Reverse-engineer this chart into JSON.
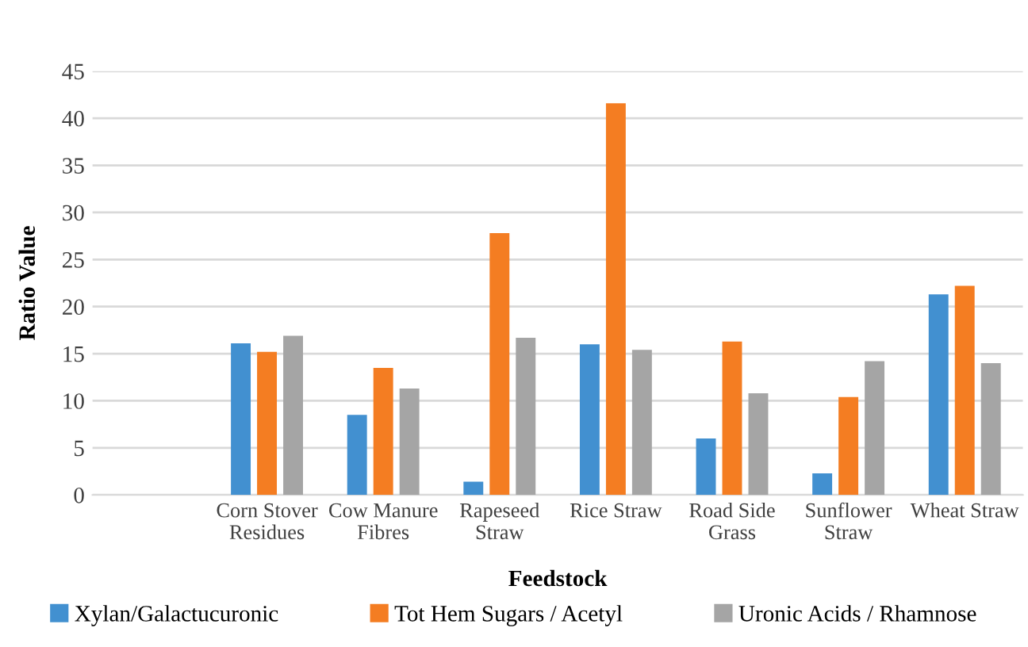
{
  "chart_data": {
    "type": "bar",
    "xlabel": "Feedstock",
    "ylabel": "Ratio Value",
    "categories": [
      null,
      "Corn Stover\nResidues",
      "Cow Manure\nFibres",
      "Rapeseed\nStraw",
      "Rice Straw",
      "Road Side\nGrass",
      "Sunflower\nStraw",
      "Wheat Straw"
    ],
    "series": [
      {
        "name": "Xylan/Galactucuronic",
        "color": "#4290d0",
        "values": [
          null,
          16.1,
          8.5,
          1.4,
          16.0,
          6.0,
          2.3,
          21.3
        ]
      },
      {
        "name": "Tot Hem Sugars / Acetyl",
        "color": "#f47d22",
        "values": [
          null,
          15.2,
          13.5,
          27.8,
          41.6,
          16.3,
          10.4,
          22.2
        ]
      },
      {
        "name": "Uronic Acids / Rhamnose",
        "color": "#a5a5a5",
        "values": [
          null,
          16.9,
          11.3,
          16.7,
          15.4,
          10.8,
          14.2,
          14.0
        ]
      }
    ],
    "ylim": [
      0,
      45
    ],
    "yticks": [
      0,
      5,
      10,
      15,
      20,
      25,
      30,
      35,
      40,
      45
    ],
    "grid": "y",
    "legend": "bottom"
  }
}
